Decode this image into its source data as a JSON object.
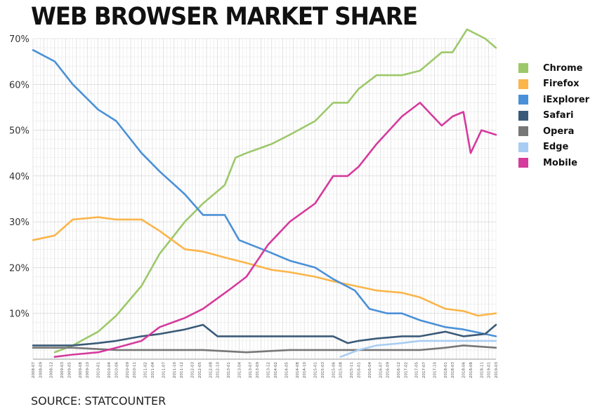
{
  "title": "WEB BROWSER MARKET SHARE",
  "source": "SOURCE: STATCOUNTER",
  "chart_data": {
    "type": "line",
    "xlim": [
      "2008-07",
      "2019-03"
    ],
    "ylim": [
      0,
      70
    ],
    "y_ticks": [
      "10%",
      "20%",
      "30%",
      "40%",
      "50%",
      "60%",
      "70%"
    ],
    "x_ticks": [
      "2008-07",
      "2008-09",
      "2008-12",
      "2009-03",
      "2009-05",
      "2009-08",
      "2009-10",
      "2010-01",
      "2010-04",
      "2010-06",
      "2010-09",
      "2010-11",
      "2011-02",
      "2011-04",
      "2011-07",
      "2011-10",
      "2011-12",
      "2012-03",
      "2012-05",
      "2012-08",
      "2012-10",
      "2013-01",
      "2013-04",
      "2013-07",
      "2013-09",
      "2013-12",
      "2014-02",
      "2014-05",
      "2014-08",
      "2014-10",
      "2015-01",
      "2015-03",
      "2015-06",
      "2015-08",
      "2015-11",
      "2016-01",
      "2016-04",
      "2016-07",
      "2016-09",
      "2016-12",
      "2017-02",
      "2017-05",
      "2017-07",
      "2017-10",
      "2018-01",
      "2018-03",
      "2018-06",
      "2018-08",
      "2018-11",
      "2019-01",
      "2019-03"
    ],
    "grid": true,
    "legend_position": "right",
    "series": [
      {
        "name": "Chrome",
        "color": "#9dc86a",
        "points": [
          [
            "2009-01",
            1.5
          ],
          [
            "2009-06",
            3.0
          ],
          [
            "2010-01",
            6.0
          ],
          [
            "2010-06",
            9.5
          ],
          [
            "2011-01",
            16
          ],
          [
            "2011-06",
            23
          ],
          [
            "2012-01",
            30
          ],
          [
            "2012-06",
            34
          ],
          [
            "2012-12",
            38
          ],
          [
            "2013-03",
            44
          ],
          [
            "2013-06",
            45
          ],
          [
            "2014-01",
            47
          ],
          [
            "2014-06",
            49
          ],
          [
            "2015-01",
            52
          ],
          [
            "2015-06",
            56
          ],
          [
            "2015-10",
            56
          ],
          [
            "2016-01",
            59
          ],
          [
            "2016-06",
            62
          ],
          [
            "2017-01",
            62
          ],
          [
            "2017-06",
            63
          ],
          [
            "2017-12",
            67
          ],
          [
            "2018-03",
            67
          ],
          [
            "2018-07",
            72
          ],
          [
            "2018-12",
            70
          ],
          [
            "2019-03",
            68
          ]
        ]
      },
      {
        "name": "Firefox",
        "color": "#fbb54a",
        "points": [
          [
            "2008-07",
            26
          ],
          [
            "2009-01",
            27
          ],
          [
            "2009-06",
            30.5
          ],
          [
            "2010-01",
            31
          ],
          [
            "2010-06",
            30.5
          ],
          [
            "2011-01",
            30.5
          ],
          [
            "2011-06",
            28
          ],
          [
            "2012-01",
            24
          ],
          [
            "2012-06",
            23.5
          ],
          [
            "2013-01",
            22
          ],
          [
            "2013-06",
            21
          ],
          [
            "2014-01",
            19.5
          ],
          [
            "2014-06",
            19
          ],
          [
            "2015-01",
            18
          ],
          [
            "2015-06",
            17
          ],
          [
            "2015-12",
            16
          ],
          [
            "2016-06",
            15
          ],
          [
            "2017-01",
            14.5
          ],
          [
            "2017-06",
            13.5
          ],
          [
            "2018-01",
            11
          ],
          [
            "2018-06",
            10.5
          ],
          [
            "2018-10",
            9.5
          ],
          [
            "2019-03",
            10
          ]
        ]
      },
      {
        "name": "iExplorer",
        "color": "#4a90d8",
        "points": [
          [
            "2008-07",
            67.5
          ],
          [
            "2009-01",
            65
          ],
          [
            "2009-06",
            60
          ],
          [
            "2010-01",
            54.5
          ],
          [
            "2010-06",
            52
          ],
          [
            "2011-01",
            45
          ],
          [
            "2011-06",
            41
          ],
          [
            "2012-01",
            36
          ],
          [
            "2012-06",
            31.5
          ],
          [
            "2012-12",
            31.5
          ],
          [
            "2013-04",
            26
          ],
          [
            "2013-12",
            23.5
          ],
          [
            "2014-06",
            21.5
          ],
          [
            "2015-01",
            20
          ],
          [
            "2015-06",
            17.5
          ],
          [
            "2015-12",
            15
          ],
          [
            "2016-04",
            11
          ],
          [
            "2016-09",
            10
          ],
          [
            "2017-01",
            10
          ],
          [
            "2017-06",
            8.5
          ],
          [
            "2018-01",
            7
          ],
          [
            "2018-06",
            6.5
          ],
          [
            "2019-03",
            5
          ]
        ]
      },
      {
        "name": "Safari",
        "color": "#3a5a78",
        "points": [
          [
            "2008-07",
            3
          ],
          [
            "2009-06",
            3
          ],
          [
            "2010-01",
            3.5
          ],
          [
            "2010-06",
            4
          ],
          [
            "2011-01",
            5
          ],
          [
            "2011-06",
            5.5
          ],
          [
            "2012-01",
            6.5
          ],
          [
            "2012-06",
            7.5
          ],
          [
            "2012-10",
            5
          ],
          [
            "2013-01",
            5
          ],
          [
            "2014-01",
            5
          ],
          [
            "2014-06",
            5
          ],
          [
            "2015-01",
            5
          ],
          [
            "2015-06",
            5
          ],
          [
            "2015-10",
            3.5
          ],
          [
            "2016-01",
            4
          ],
          [
            "2016-06",
            4.5
          ],
          [
            "2017-01",
            5
          ],
          [
            "2017-06",
            5
          ],
          [
            "2018-01",
            6
          ],
          [
            "2018-06",
            5
          ],
          [
            "2018-12",
            5.5
          ],
          [
            "2019-03",
            7.5
          ]
        ]
      },
      {
        "name": "Opera",
        "color": "#777777",
        "points": [
          [
            "2008-07",
            2.5
          ],
          [
            "2009-06",
            2.5
          ],
          [
            "2010-06",
            2
          ],
          [
            "2011-06",
            2
          ],
          [
            "2012-06",
            2
          ],
          [
            "2013-06",
            1.5
          ],
          [
            "2014-06",
            2
          ],
          [
            "2015-01",
            2
          ],
          [
            "2015-06",
            2
          ],
          [
            "2016-06",
            2
          ],
          [
            "2017-06",
            2
          ],
          [
            "2018-01",
            2.5
          ],
          [
            "2018-06",
            3
          ],
          [
            "2019-03",
            2.5
          ]
        ]
      },
      {
        "name": "Edge",
        "color": "#a9cdf2",
        "points": [
          [
            "2015-08",
            0.5
          ],
          [
            "2016-01",
            2
          ],
          [
            "2016-06",
            3
          ],
          [
            "2017-01",
            3.5
          ],
          [
            "2017-06",
            4
          ],
          [
            "2018-01",
            4
          ],
          [
            "2018-06",
            4
          ],
          [
            "2019-03",
            4
          ]
        ]
      },
      {
        "name": "Mobile",
        "color": "#d53a9d",
        "points": [
          [
            "2009-01",
            0.5
          ],
          [
            "2009-06",
            1
          ],
          [
            "2010-01",
            1.5
          ],
          [
            "2010-06",
            2.5
          ],
          [
            "2011-01",
            4
          ],
          [
            "2011-06",
            7
          ],
          [
            "2012-01",
            9
          ],
          [
            "2012-06",
            11
          ],
          [
            "2013-01",
            15
          ],
          [
            "2013-06",
            18
          ],
          [
            "2013-12",
            25
          ],
          [
            "2014-06",
            30
          ],
          [
            "2015-01",
            34
          ],
          [
            "2015-06",
            40
          ],
          [
            "2015-10",
            40
          ],
          [
            "2016-01",
            42
          ],
          [
            "2016-06",
            47
          ],
          [
            "2017-01",
            53
          ],
          [
            "2017-06",
            56
          ],
          [
            "2017-12",
            51
          ],
          [
            "2018-03",
            53
          ],
          [
            "2018-06",
            54
          ],
          [
            "2018-08",
            45
          ],
          [
            "2018-11",
            50
          ],
          [
            "2019-03",
            49
          ]
        ]
      }
    ]
  }
}
